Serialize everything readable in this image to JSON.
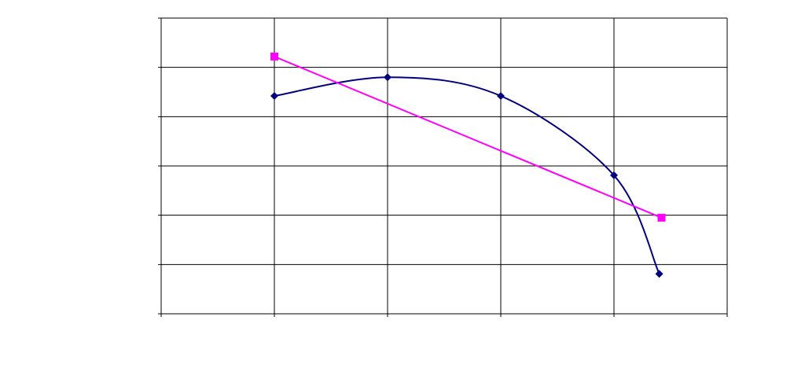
{
  "chart_data": {
    "type": "scatter",
    "xlim": [
      0,
      5
    ],
    "xticks": [
      0,
      1,
      2,
      3,
      4,
      5
    ],
    "ylim": [
      0,
      6
    ],
    "yticks": [
      0,
      1,
      2,
      3,
      4,
      5,
      6
    ],
    "grid": true,
    "series": [
      {
        "color": "#000080",
        "marker": "diamond",
        "smooth": true,
        "x": [
          1,
          2,
          3,
          4,
          4.4
        ],
        "values": [
          4.42,
          4.8,
          4.42,
          2.81,
          0.81
        ]
      },
      {
        "color": "#ff00ff",
        "marker": "square",
        "smooth": false,
        "x": [
          1,
          4.42
        ],
        "values": [
          5.22,
          1.95
        ]
      }
    ]
  }
}
